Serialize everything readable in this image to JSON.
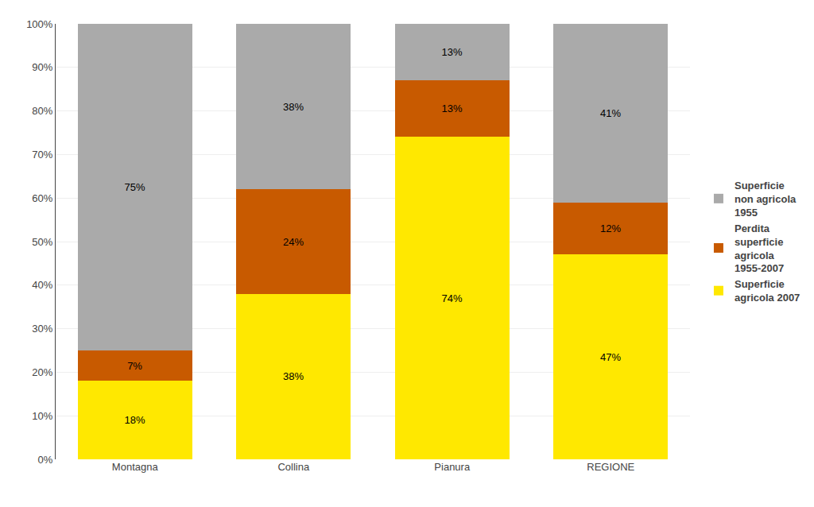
{
  "chart_data": {
    "type": "bar",
    "stacked": true,
    "categories": [
      "Montagna",
      "Collina",
      "Pianura",
      "REGIONE"
    ],
    "series": [
      {
        "name": "Superficie\nagricola 2007",
        "color": "#FFE800",
        "values": [
          18,
          38,
          74,
          47
        ],
        "value_labels": [
          "18%",
          "38%",
          "74%",
          "47%"
        ]
      },
      {
        "name": "Perdita\nsuperficie\nagricola\n1955-2007",
        "color": "#C85A00",
        "values": [
          7,
          24,
          13,
          12
        ],
        "value_labels": [
          "7%",
          "24%",
          "13%",
          "12%"
        ]
      },
      {
        "name": "Superficie\nnon agricola\n1955",
        "color": "#AAAAAA",
        "values": [
          75,
          38,
          13,
          41
        ],
        "value_labels": [
          "75%",
          "38%",
          "13%",
          "41%"
        ]
      }
    ],
    "ylim": [
      0,
      100
    ],
    "yticks": [
      {
        "value": 0,
        "label": "0%"
      },
      {
        "value": 10,
        "label": "10%"
      },
      {
        "value": 20,
        "label": "20%"
      },
      {
        "value": 30,
        "label": "30%"
      },
      {
        "value": 40,
        "label": "40%"
      },
      {
        "value": 50,
        "label": "50%"
      },
      {
        "value": 60,
        "label": "60%"
      },
      {
        "value": 70,
        "label": "70%"
      },
      {
        "value": 80,
        "label": "80%"
      },
      {
        "value": 90,
        "label": "90%"
      },
      {
        "value": 100,
        "label": "100%"
      }
    ],
    "grid": true,
    "legend": "right",
    "data_labels": true
  }
}
